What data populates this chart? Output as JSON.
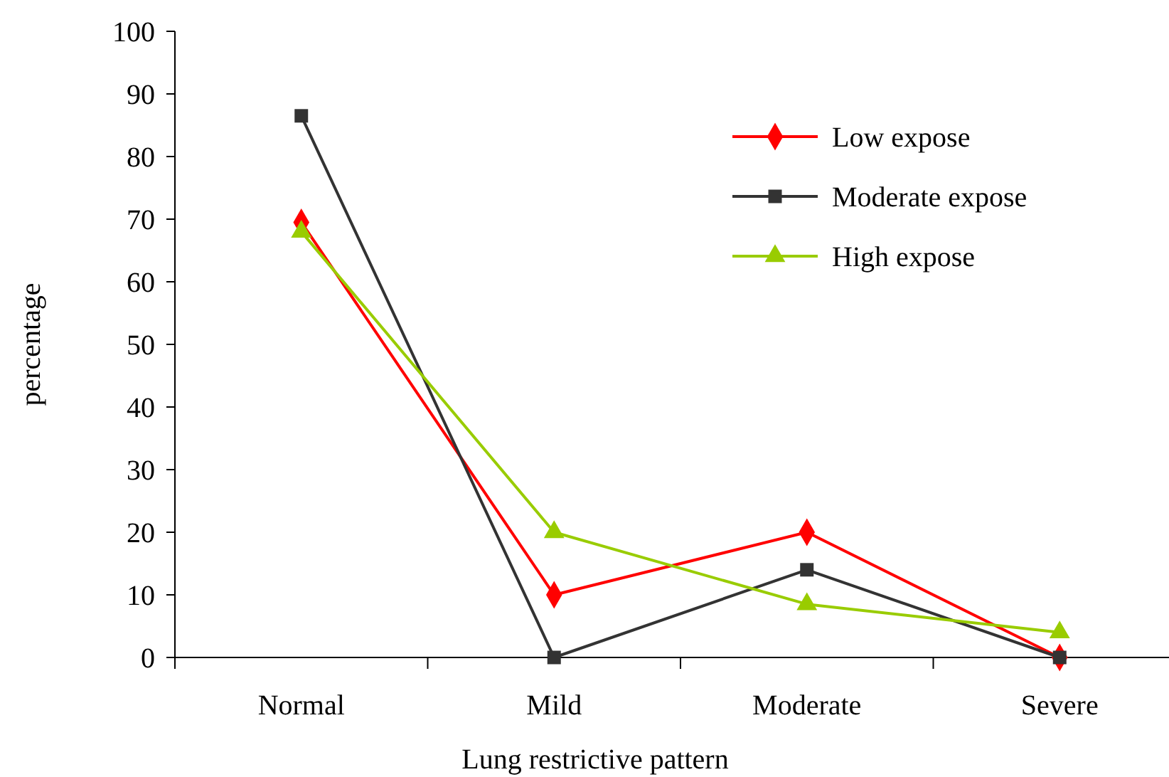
{
  "chart_data": {
    "type": "line",
    "xlabel": "Lung restrictive pattern",
    "ylabel": "percentage",
    "categories": [
      "Normal",
      "Mild",
      "Moderate",
      "Severe"
    ],
    "series": [
      {
        "name": "Low expose",
        "color": "#ff0000",
        "marker": "diamond",
        "values": [
          69.5,
          10,
          20,
          0
        ]
      },
      {
        "name": "Moderate expose",
        "color": "#333333",
        "marker": "square",
        "values": [
          86.5,
          0,
          14,
          0
        ]
      },
      {
        "name": "High expose",
        "color": "#99cc00",
        "marker": "triangle",
        "values": [
          68,
          20,
          8.5,
          4
        ]
      }
    ],
    "ylim": [
      0,
      100
    ],
    "yticks": [
      0,
      10,
      20,
      30,
      40,
      50,
      60,
      70,
      80,
      90,
      100
    ],
    "grid": false,
    "legend": "top right",
    "line_style": "solid"
  }
}
